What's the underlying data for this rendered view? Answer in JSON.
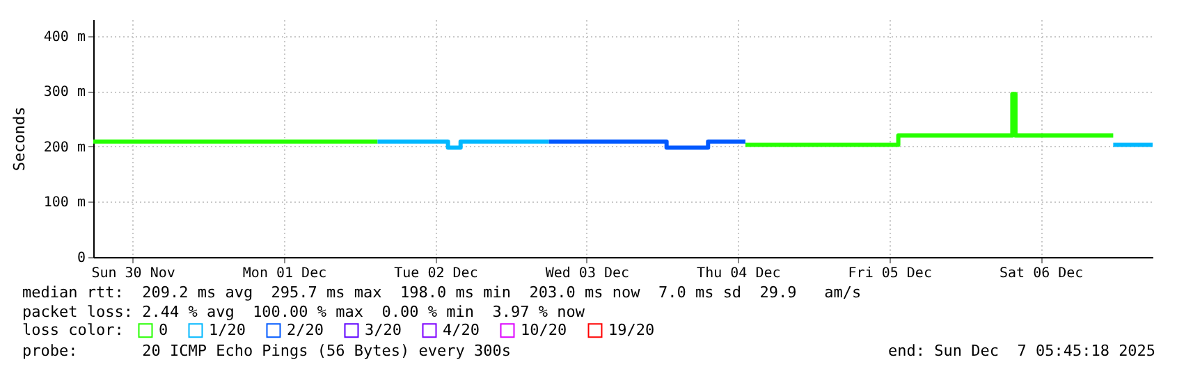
{
  "chart_data": {
    "type": "step",
    "ylabel": "Seconds",
    "legend_title": "loss color:",
    "legend": "bottom",
    "grid": true,
    "ylim": [
      0,
      430
    ],
    "yticks": [
      0,
      {
        "value": 100,
        "label": "100 m"
      },
      {
        "value": 200,
        "label": "200 m"
      },
      {
        "value": 300,
        "label": "300 m"
      },
      {
        "value": 400,
        "label": "400 m"
      }
    ],
    "xlim": [
      "2025-11-30T05:45",
      "2025-12-07T05:45"
    ],
    "xticks": [
      {
        "value": "2025-11-30T12:00",
        "label": "Sun 30 Nov"
      },
      {
        "value": "2025-12-01T12:00",
        "label": "Mon 01 Dec"
      },
      {
        "value": "2025-12-02T12:00",
        "label": "Tue 02 Dec"
      },
      {
        "value": "2025-12-03T12:00",
        "label": "Wed 03 Dec"
      },
      {
        "value": "2025-12-04T12:00",
        "label": "Thu 04 Dec"
      },
      {
        "value": "2025-12-05T12:00",
        "label": "Fri 05 Dec"
      },
      {
        "value": "2025-12-06T12:00",
        "label": "Sat 06 Dec"
      }
    ],
    "series": [
      {
        "name": "0",
        "color": "#26ff00",
        "x": [
          "2025-11-30T05:45",
          "2025-12-02T02:50",
          "2025-12-02T02:55",
          "2025-12-04T13:10",
          "2025-12-05T13:25",
          "2025-12-06T07:30",
          "2025-12-06T08:00",
          "2025-12-06T23:30"
        ],
        "values": [
          209,
          209,
          null,
          203,
          220,
          295,
          220,
          220
        ]
      },
      {
        "name": "1/20",
        "color": "#00b8ff",
        "x": [
          "2025-12-02T02:50",
          "2025-12-02T14:00",
          "2025-12-02T16:00",
          "2025-12-03T06:00",
          "2025-12-03T06:05",
          "2025-12-06T23:30",
          "2025-12-07T05:45"
        ],
        "values": [
          209,
          198,
          209,
          209,
          null,
          203,
          203
        ]
      },
      {
        "name": "2/20",
        "color": "#0059ff",
        "x": [
          "2025-12-03T06:00",
          "2025-12-04T00:40",
          "2025-12-04T07:15",
          "2025-12-04T13:10"
        ],
        "values": [
          209,
          198,
          209,
          209
        ]
      },
      {
        "name": "3/20",
        "color": "#5e00ff"
      },
      {
        "name": "4/20",
        "color": "#7e00ff"
      },
      {
        "name": "10/20",
        "color": "#dd00ff"
      },
      {
        "name": "19/20",
        "color": "#ff0000"
      }
    ],
    "annotations": [
      "median rtt:  209.2 ms avg  295.7 ms max  198.0 ms min  203.0 ms now  7.0 ms sd  29.9   am/s",
      "packet loss: 2.44 % avg  100.00 % max  0.00 % min  3.97 % now",
      "probe:       20 ICMP Echo Pings (56 Bytes) every 300s",
      "end: Sun Dec  7 05:45:18 2025"
    ]
  }
}
